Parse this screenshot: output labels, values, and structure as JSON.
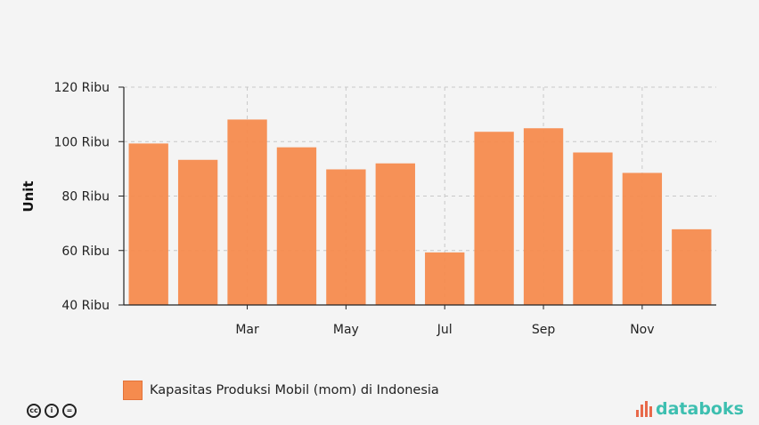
{
  "chart_data": {
    "type": "bar",
    "categories": [
      "Jan",
      "Feb",
      "Mar",
      "Apr",
      "May",
      "Jun",
      "Jul",
      "Aug",
      "Sep",
      "Oct",
      "Nov",
      "Dec"
    ],
    "x_tick_labels": [
      "",
      "",
      "Mar",
      "",
      "May",
      "",
      "Jul",
      "",
      "Sep",
      "",
      "Nov",
      ""
    ],
    "series": [
      {
        "name": "Kapasitas Produksi Mobil (mom) di Indonesia",
        "color": "#f58b4e",
        "values": [
          99.3,
          93.3,
          108.1,
          97.9,
          89.8,
          92.0,
          59.3,
          103.6,
          104.9,
          96.0,
          88.5,
          67.8
        ]
      }
    ],
    "ylabel": "Unit",
    "ylim": [
      40,
      120
    ],
    "y_ticks": [
      {
        "value": 40,
        "label": "40 Ribu"
      },
      {
        "value": 60,
        "label": "60 Ribu"
      },
      {
        "value": 80,
        "label": "80 Ribu"
      },
      {
        "value": 100,
        "label": "100 Ribu"
      },
      {
        "value": 120,
        "label": "120 Ribu"
      }
    ],
    "grid": true,
    "legend_position": "bottom-left"
  },
  "legend": {
    "label": "Kapasitas Produksi Mobil (mom) di Indonesia",
    "swatch_color": "#f58b4e"
  },
  "footer": {
    "license_icons": [
      "cc-icon",
      "by-icon",
      "nd-icon"
    ],
    "license_glyphs": [
      "cc",
      "i",
      "="
    ],
    "brand": "databoks",
    "brand_color": "#3dbfb0",
    "brand_mark_color": "#e8694a"
  }
}
